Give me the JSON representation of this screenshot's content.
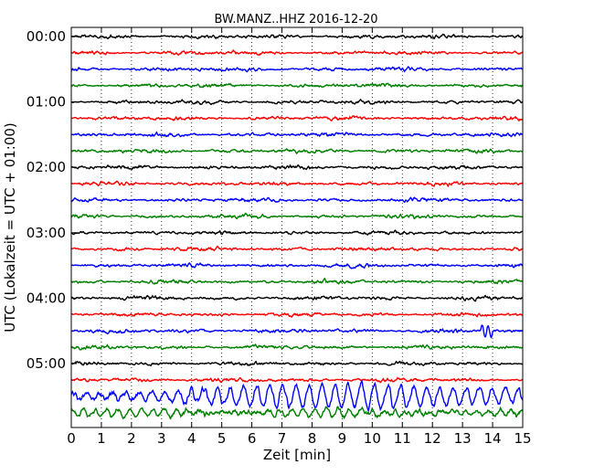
{
  "chart_data": {
    "type": "line",
    "title": "BW.MANZ..HHZ 2016-12-20",
    "xlabel": "Zeit  [min]",
    "ylabel": "UTC (Lokalzeit = UTC + 01:00)",
    "xlim": [
      0,
      15
    ],
    "x_ticks": [
      "0",
      "1",
      "2",
      "3",
      "4",
      "5",
      "6",
      "7",
      "8",
      "9",
      "10",
      "11",
      "12",
      "13",
      "14",
      "15"
    ],
    "y_ticks": [
      "00:00",
      "01:00",
      "02:00",
      "03:00",
      "04:00",
      "05:00"
    ],
    "rows_per_hour": 4,
    "minutes_per_row": 15,
    "row_start_times": [
      "00:00",
      "00:15",
      "00:30",
      "00:45",
      "01:00",
      "01:15",
      "01:30",
      "01:45",
      "02:00",
      "02:15",
      "02:30",
      "02:45",
      "03:00",
      "03:15",
      "03:30",
      "03:45",
      "04:00",
      "04:15",
      "04:30",
      "04:45",
      "05:00",
      "05:15",
      "05:30",
      "05:45"
    ],
    "trace_colors": [
      "#000000",
      "#ff0000",
      "#0000ff",
      "#008000"
    ],
    "grid": {
      "vertical_dotted": true,
      "horizontal": false
    },
    "events": [
      {
        "row_start": "05:30",
        "description": "large-amplitude oscillation",
        "x_start": 0.0,
        "x_end": 15.0
      },
      {
        "row_start": "05:45",
        "description": "elevated-amplitude oscillation",
        "x_start": 0.0,
        "x_end": 15.0
      },
      {
        "row_start": "04:30",
        "description": "small transient",
        "x_start": 13.6,
        "x_end": 14.0
      }
    ]
  }
}
